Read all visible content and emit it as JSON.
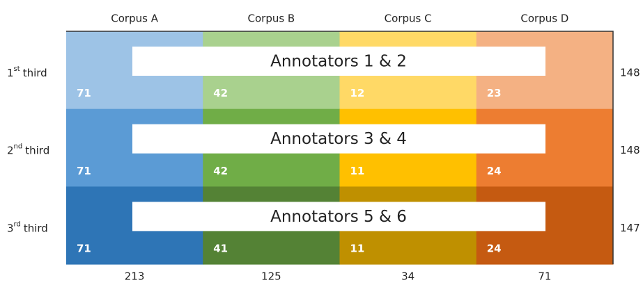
{
  "columns": [
    "Corpus A",
    "Corpus B",
    "Corpus C",
    "Corpus D"
  ],
  "rows": [
    {
      "ordinal": "1",
      "ordinal_suffix": "st",
      "label": "third",
      "banner": "Annotators 1 & 2",
      "values": [
        71,
        42,
        12,
        23
      ],
      "total": 148,
      "colors": [
        "#9dc3e6",
        "#a9d18e",
        "#ffd966",
        "#f4b183"
      ]
    },
    {
      "ordinal": "2",
      "ordinal_suffix": "nd",
      "label": "third",
      "banner": "Annotators 3 & 4",
      "values": [
        71,
        42,
        11,
        24
      ],
      "total": 148,
      "colors": [
        "#5b9bd5",
        "#70ad47",
        "#ffc000",
        "#ed7d31"
      ]
    },
    {
      "ordinal": "3",
      "ordinal_suffix": "rd",
      "label": "third",
      "banner": "Annotators 5 & 6",
      "values": [
        71,
        41,
        11,
        24
      ],
      "total": 147,
      "colors": [
        "#2e75b6",
        "#548235",
        "#bf9000",
        "#c55a11"
      ]
    }
  ],
  "column_totals": [
    213,
    125,
    34,
    71
  ]
}
